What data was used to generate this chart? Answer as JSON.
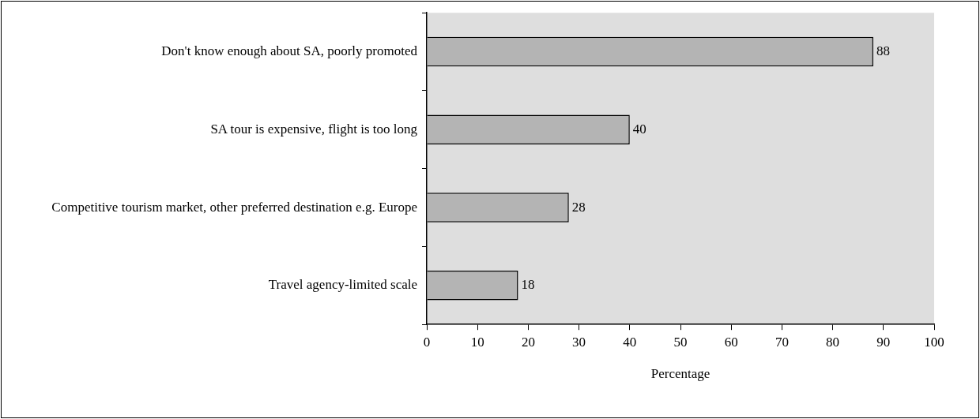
{
  "chart_data": {
    "type": "bar",
    "orientation": "horizontal",
    "xlabel": "Percentage",
    "categories": [
      "Don't know enough about SA, poorly promoted",
      "SA tour is expensive, flight is too long",
      "Competitive tourism market, other preferred destination e.g. Europe",
      "Travel agency-limited scale"
    ],
    "values": [
      88,
      40,
      28,
      18
    ],
    "color": "#b4b4b4",
    "xlim": [
      0,
      100
    ],
    "xticks": [
      0,
      10,
      20,
      30,
      40,
      50,
      60,
      70,
      80,
      90,
      100
    ],
    "data_labels": true,
    "grid": false,
    "legend": false
  }
}
